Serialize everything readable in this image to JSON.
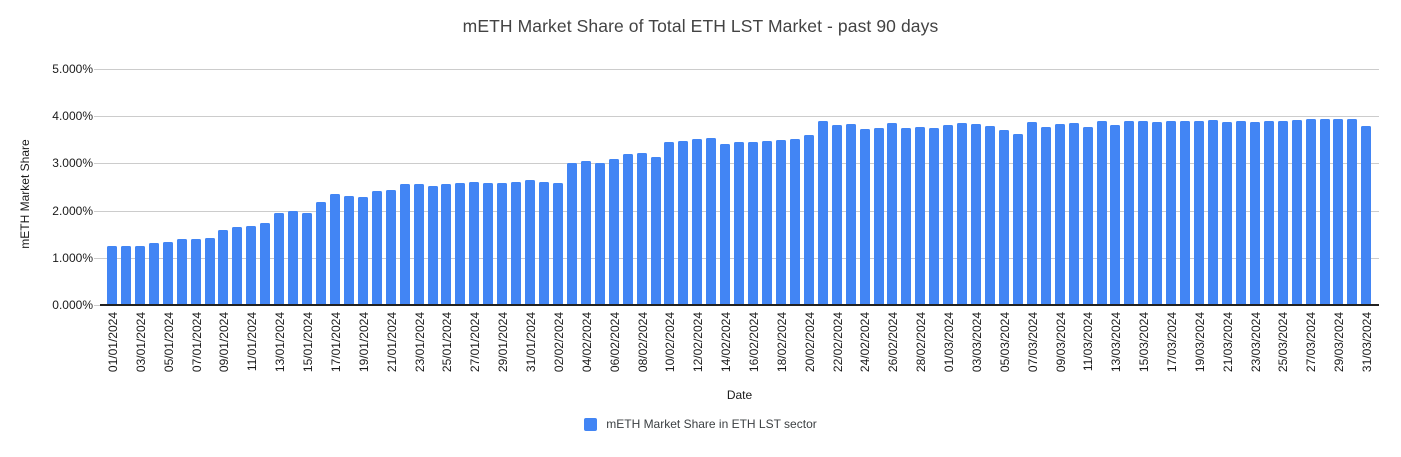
{
  "title": "mETH Market Share of Total ETH LST Market - past 90 days",
  "y_axis": {
    "title": "mETH Market Share",
    "ticks": [
      "0.000%",
      "1.000%",
      "2.000%",
      "3.000%",
      "4.000%",
      "5.000%"
    ]
  },
  "x_axis": {
    "title": "Date",
    "label_every": 2
  },
  "legend": {
    "label": "mETH Market Share in ETH LST sector"
  },
  "colors": {
    "bar": "#4285F4",
    "gridline": "#cccccc",
    "axis_line": "#212121",
    "title_text": "#434343",
    "tick_text": "#1a1a1a"
  },
  "chart_data": {
    "type": "bar",
    "title": "mETH Market Share of Total ETH LST Market - past 90 days",
    "xlabel": "Date",
    "ylabel": "mETH Market Share",
    "ylim": [
      0,
      5
    ],
    "y_unit": "%",
    "grid": true,
    "legend_position": "bottom",
    "legend_entries": [
      "mETH Market Share in ETH LST sector"
    ],
    "categories": [
      "01/01/2024",
      "02/01/2024",
      "03/01/2024",
      "04/01/2024",
      "05/01/2024",
      "06/01/2024",
      "07/01/2024",
      "08/01/2024",
      "09/01/2024",
      "10/01/2024",
      "11/01/2024",
      "12/01/2024",
      "13/01/2024",
      "14/01/2024",
      "15/01/2024",
      "16/01/2024",
      "17/01/2024",
      "18/01/2024",
      "19/01/2024",
      "20/01/2024",
      "21/01/2024",
      "22/01/2024",
      "23/01/2024",
      "24/01/2024",
      "25/01/2024",
      "26/01/2024",
      "27/01/2024",
      "28/01/2024",
      "29/01/2024",
      "30/01/2024",
      "31/01/2024",
      "01/02/2024",
      "02/02/2024",
      "03/02/2024",
      "04/02/2024",
      "05/02/2024",
      "06/02/2024",
      "07/02/2024",
      "08/02/2024",
      "09/02/2024",
      "10/02/2024",
      "11/02/2024",
      "12/02/2024",
      "13/02/2024",
      "14/02/2024",
      "15/02/2024",
      "16/02/2024",
      "17/02/2024",
      "18/02/2024",
      "19/02/2024",
      "20/02/2024",
      "21/02/2024",
      "22/02/2024",
      "23/02/2024",
      "24/02/2024",
      "25/02/2024",
      "26/02/2024",
      "27/02/2024",
      "28/02/2024",
      "29/02/2024",
      "01/03/2024",
      "02/03/2024",
      "03/03/2024",
      "04/03/2024",
      "05/03/2024",
      "06/03/2024",
      "07/03/2024",
      "08/03/2024",
      "09/03/2024",
      "10/03/2024",
      "11/03/2024",
      "12/03/2024",
      "13/03/2024",
      "14/03/2024",
      "15/03/2024",
      "16/03/2024",
      "17/03/2024",
      "18/03/2024",
      "19/03/2024",
      "20/03/2024",
      "21/03/2024",
      "22/03/2024",
      "23/03/2024",
      "24/03/2024",
      "25/03/2024",
      "26/03/2024",
      "27/03/2024",
      "28/03/2024",
      "29/03/2024",
      "30/03/2024",
      "31/03/2024"
    ],
    "values": [
      1.26,
      1.26,
      1.26,
      1.31,
      1.33,
      1.39,
      1.39,
      1.41,
      1.6,
      1.66,
      1.68,
      1.74,
      1.96,
      1.99,
      1.96,
      2.19,
      2.36,
      2.31,
      2.29,
      2.42,
      2.43,
      2.57,
      2.57,
      2.53,
      2.57,
      2.58,
      2.6,
      2.58,
      2.59,
      2.6,
      2.65,
      2.61,
      2.59,
      3.0,
      3.05,
      3.0,
      3.1,
      3.21,
      3.22,
      3.14,
      3.45,
      3.47,
      3.51,
      3.53,
      3.41,
      3.46,
      3.46,
      3.48,
      3.5,
      3.52,
      3.6,
      3.89,
      3.81,
      3.83,
      3.74,
      3.75,
      3.85,
      3.76,
      3.77,
      3.75,
      3.81,
      3.86,
      3.84,
      3.79,
      3.7,
      3.62,
      3.87,
      3.78,
      3.84,
      3.85,
      3.77,
      3.89,
      3.82,
      3.9,
      3.89,
      3.87,
      3.89,
      3.89,
      3.89,
      3.92,
      3.87,
      3.9,
      3.87,
      3.89,
      3.89,
      3.92,
      3.95,
      3.94,
      3.94,
      3.95,
      3.8
    ]
  }
}
